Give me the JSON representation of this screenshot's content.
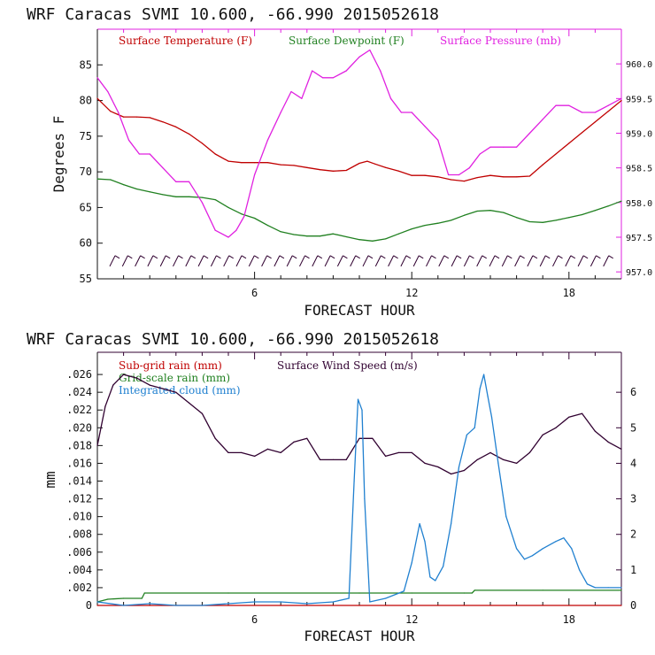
{
  "chart_data": [
    {
      "type": "line",
      "title": "WRF   Caracas SVMI  10.600, -66.990  2015052618",
      "xlabel": "FORECAST HOUR",
      "ylabel": "Degrees F",
      "y2label": "",
      "xlim": [
        0,
        20
      ],
      "ylim": [
        55,
        90
      ],
      "y2lim": [
        956.9,
        960.5
      ],
      "xticks": [
        6,
        12,
        18
      ],
      "xtick_labels": [
        "6",
        "12",
        "18"
      ],
      "yticks": [
        55,
        60,
        65,
        70,
        75,
        80,
        85
      ],
      "ytick_labels": [
        "55",
        "60",
        "65",
        "70",
        "75",
        "80",
        "85"
      ],
      "y2ticks": [
        957.0,
        957.5,
        958.0,
        958.5,
        959.0,
        959.5,
        960.0
      ],
      "y2tick_labels": [
        "957.0",
        "957.5",
        "958.0",
        "958.5",
        "959.0",
        "959.5",
        "960.0"
      ],
      "colors": {
        "temp": "#c00000",
        "dew": "#208020",
        "pres": "#e020e0",
        "wind": "#300030",
        "frame": "#e020e0",
        "axes": "#111111"
      },
      "legend": [
        {
          "label": "Surface Temperature (F)",
          "color": "#c00000"
        },
        {
          "label": "Surface Dewpoint (F)",
          "color": "#208020"
        },
        {
          "label": "Surface Pressure (mb)",
          "color": "#e020e0"
        }
      ],
      "wind_barbs": {
        "y_value": 57.5,
        "count": 40
      },
      "series": [
        {
          "name": "Surface Temperature (F)",
          "axis": "left",
          "color": "#c00000",
          "x": [
            0,
            0.5,
            1,
            1.5,
            2,
            2.5,
            3,
            3.5,
            4,
            4.5,
            5,
            5.5,
            6,
            6.5,
            7,
            7.5,
            8,
            8.5,
            9,
            9.5,
            10,
            10.3,
            10.6,
            11,
            11.5,
            12,
            12.5,
            13,
            13.5,
            14,
            14.5,
            15,
            15.5,
            16,
            16.5,
            17,
            17.5,
            18,
            18.5,
            19,
            19.5,
            20
          ],
          "y": [
            80.3,
            78.5,
            77.7,
            77.7,
            77.6,
            77.0,
            76.3,
            75.3,
            74.0,
            72.5,
            71.5,
            71.3,
            71.3,
            71.3,
            71.0,
            70.9,
            70.6,
            70.3,
            70.1,
            70.2,
            71.2,
            71.5,
            71.1,
            70.6,
            70.1,
            69.5,
            69.5,
            69.3,
            68.9,
            68.7,
            69.2,
            69.5,
            69.3,
            69.3,
            69.4,
            71.0,
            72.5,
            74.0,
            75.5,
            77.0,
            78.5,
            80.0
          ]
        },
        {
          "name": "Surface Dewpoint (F)",
          "axis": "left",
          "color": "#208020",
          "x": [
            0,
            0.5,
            1,
            1.5,
            2,
            2.5,
            3,
            3.5,
            4,
            4.5,
            5,
            5.5,
            6,
            6.5,
            7,
            7.5,
            8,
            8.5,
            9,
            9.5,
            10,
            10.5,
            11,
            11.5,
            12,
            12.5,
            13,
            13.5,
            14,
            14.5,
            15,
            15.5,
            16,
            16.5,
            17,
            17.5,
            18,
            18.5,
            19,
            19.5,
            20
          ],
          "y": [
            69.0,
            68.9,
            68.2,
            67.6,
            67.2,
            66.8,
            66.5,
            66.5,
            66.4,
            66.1,
            65.0,
            64.1,
            63.5,
            62.5,
            61.6,
            61.2,
            61.0,
            61.0,
            61.3,
            60.9,
            60.5,
            60.3,
            60.6,
            61.3,
            62.0,
            62.5,
            62.8,
            63.2,
            63.9,
            64.5,
            64.6,
            64.3,
            63.6,
            63.0,
            62.9,
            63.2,
            63.6,
            64.0,
            64.6,
            65.2,
            65.9
          ]
        },
        {
          "name": "Surface Pressure (mb)",
          "axis": "right",
          "color": "#e020e0",
          "x": [
            0,
            0.4,
            0.8,
            1.2,
            1.6,
            2,
            2.5,
            3,
            3.5,
            4,
            4.5,
            5,
            5.3,
            5.6,
            6,
            6.5,
            7,
            7.4,
            7.8,
            8.2,
            8.6,
            9,
            9.5,
            10,
            10.4,
            10.8,
            11.2,
            11.6,
            12,
            12.5,
            13,
            13.4,
            13.8,
            14.2,
            14.6,
            15,
            15.5,
            16,
            16.5,
            17,
            17.5,
            18,
            18.5,
            19,
            19.5,
            20
          ],
          "y": [
            959.8,
            959.6,
            959.3,
            958.9,
            958.7,
            958.7,
            958.5,
            958.3,
            958.3,
            958.0,
            957.6,
            957.5,
            957.6,
            957.8,
            958.4,
            958.9,
            959.3,
            959.6,
            959.5,
            959.9,
            959.8,
            959.8,
            959.9,
            960.1,
            960.2,
            959.9,
            959.5,
            959.3,
            959.3,
            959.1,
            958.9,
            958.4,
            958.4,
            958.5,
            958.7,
            958.8,
            958.8,
            958.8,
            959.0,
            959.2,
            959.4,
            959.4,
            959.3,
            959.3,
            959.4,
            959.5
          ]
        }
      ]
    },
    {
      "type": "line",
      "title": "WRF   Caracas SVMI  10.600, -66.990  2015052618",
      "xlabel": "FORECAST HOUR",
      "ylabel": "mm",
      "xlim": [
        0,
        20
      ],
      "ylim": [
        0,
        0.0285
      ],
      "y2lim": [
        0,
        7.125
      ],
      "xticks": [
        6,
        12,
        18
      ],
      "xtick_labels": [
        "6",
        "12",
        "18"
      ],
      "yticks": [
        0,
        0.002,
        0.004,
        0.006,
        0.008,
        0.01,
        0.012,
        0.014,
        0.016,
        0.018,
        0.02,
        0.022,
        0.024,
        0.026
      ],
      "ytick_labels": [
        "0",
        ".002",
        ".004",
        ".006",
        ".008",
        ".010",
        ".012",
        ".014",
        ".016",
        ".018",
        ".020",
        ".022",
        ".024",
        ".026"
      ],
      "y2ticks": [
        0,
        1,
        2,
        3,
        4,
        5,
        6
      ],
      "y2tick_labels": [
        "0",
        "1",
        "2",
        "3",
        "4",
        "5",
        "6"
      ],
      "colors": {
        "subgrid": "#c00000",
        "gridscale": "#208020",
        "cloud": "#2080d0",
        "wind": "#300030",
        "frame": "#300030",
        "axes": "#111111"
      },
      "legend": [
        {
          "label": "Sub-grid rain (mm)",
          "color": "#c00000"
        },
        {
          "label": "Surface Wind Speed (m/s)",
          "color": "#300030"
        },
        {
          "label": "Grid-scale rain (mm)",
          "color": "#208020"
        },
        {
          "label": "Integrated cloud (mm)",
          "color": "#2080d0"
        }
      ],
      "series": [
        {
          "name": "Surface Wind Speed (m/s)",
          "axis": "right",
          "color": "#300030",
          "x": [
            0,
            0.3,
            0.6,
            1,
            1.5,
            2,
            2.5,
            3,
            3.5,
            4,
            4.5,
            5,
            5.5,
            6,
            6.5,
            7,
            7.5,
            8,
            8.5,
            9,
            9.5,
            10,
            10.5,
            11,
            11.5,
            12,
            12.5,
            13,
            13.5,
            14,
            14.5,
            15,
            15.5,
            16,
            16.5,
            17,
            17.5,
            18,
            18.5,
            19,
            19.5,
            20
          ],
          "y": [
            4.5,
            5.6,
            6.2,
            6.5,
            6.4,
            6.2,
            6.1,
            6.0,
            5.7,
            5.4,
            4.7,
            4.3,
            4.3,
            4.2,
            4.4,
            4.3,
            4.6,
            4.7,
            4.1,
            4.1,
            4.1,
            4.7,
            4.7,
            4.2,
            4.3,
            4.3,
            4.0,
            3.9,
            3.7,
            3.8,
            4.1,
            4.3,
            4.1,
            4.0,
            4.3,
            4.8,
            5.0,
            5.3,
            5.4,
            4.9,
            4.6,
            4.4
          ]
        },
        {
          "name": "Grid-scale rain (mm)",
          "axis": "left",
          "color": "#208020",
          "x": [
            0,
            0.4,
            1,
            1.7,
            1.8,
            5,
            10,
            12,
            14,
            14.3,
            14.4,
            17,
            20
          ],
          "y": [
            0.0004,
            0.0007,
            0.0008,
            0.0008,
            0.0014,
            0.0014,
            0.0014,
            0.0014,
            0.0014,
            0.0014,
            0.0017,
            0.0017,
            0.0017
          ]
        },
        {
          "name": "Sub-grid rain (mm)",
          "axis": "left",
          "color": "#c00000",
          "x": [
            0,
            20
          ],
          "y": [
            0,
            0
          ]
        },
        {
          "name": "Integrated cloud (mm)",
          "axis": "right",
          "color": "#2080d0",
          "x": [
            0,
            1,
            2,
            3,
            4,
            5,
            6,
            7,
            8,
            9,
            9.6,
            9.8,
            9.95,
            10.1,
            10.2,
            10.4,
            11,
            11.7,
            12,
            12.3,
            12.5,
            12.7,
            12.9,
            13.2,
            13.5,
            13.8,
            14.1,
            14.4,
            14.6,
            14.75,
            14.9,
            15.05,
            15.3,
            15.6,
            16,
            16.3,
            16.6,
            17,
            17.5,
            17.8,
            18.1,
            18.4,
            18.7,
            19,
            19.5,
            20
          ],
          "y": [
            0.1,
            0.0,
            0.05,
            0.0,
            0.0,
            0.05,
            0.1,
            0.1,
            0.05,
            0.1,
            0.2,
            3.5,
            5.8,
            5.5,
            3.0,
            0.1,
            0.2,
            0.4,
            1.2,
            2.3,
            1.8,
            0.8,
            0.7,
            1.1,
            2.3,
            3.9,
            4.8,
            5.0,
            6.1,
            6.5,
            5.9,
            5.3,
            4.0,
            2.5,
            1.6,
            1.3,
            1.4,
            1.6,
            1.8,
            1.9,
            1.6,
            1.0,
            0.6,
            0.5,
            0.5,
            0.5
          ]
        }
      ]
    }
  ]
}
